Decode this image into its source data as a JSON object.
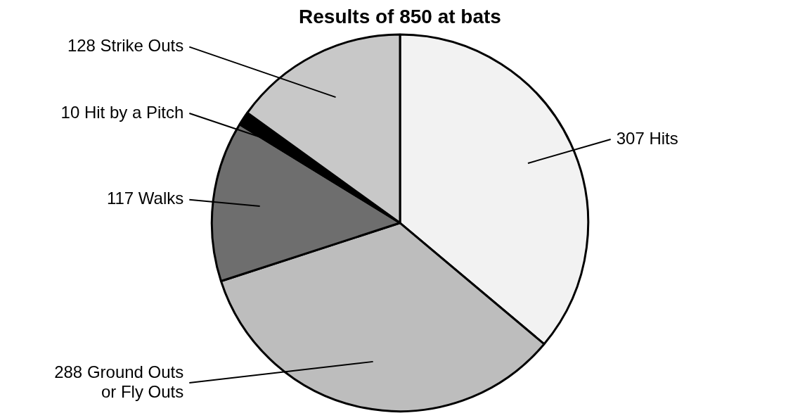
{
  "chart_data": {
    "type": "pie",
    "title": "Results of 850 at bats",
    "categories": [
      "307 Hits",
      "288 Ground Outs or Fly Outs",
      "117 Walks",
      "10 Hit by a Pitch",
      "128 Strike Outs"
    ],
    "values": [
      307,
      288,
      117,
      10,
      128
    ],
    "colors": [
      "#f2f2f2",
      "#bdbdbd",
      "#6e6e6e",
      "#000000",
      "#c8c8c8"
    ],
    "legend": false
  }
}
